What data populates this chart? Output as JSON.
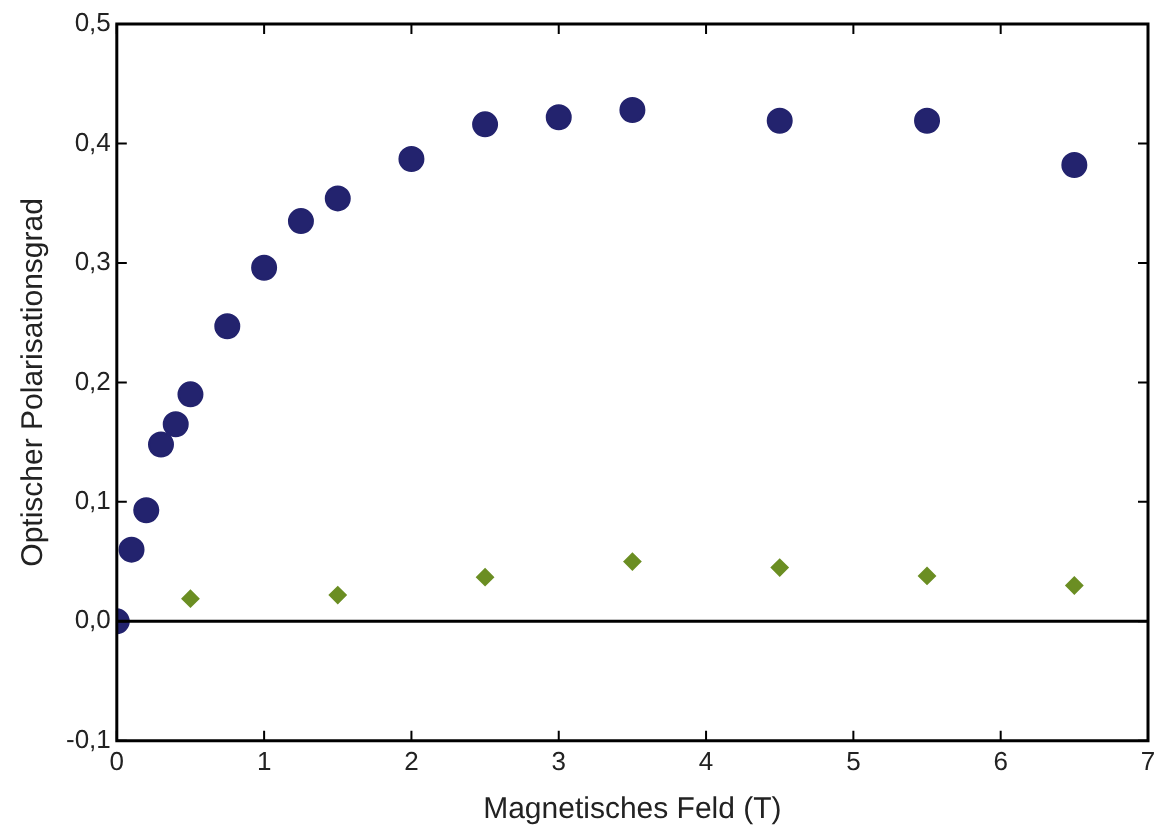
{
  "chart_data": {
    "type": "scatter",
    "xlabel": "Magnetisches Feld (T)",
    "ylabel": "Optischer Polarisationsgrad",
    "series": [
      {
        "color": "#23236e",
        "marker": "circle",
        "x": [
          0,
          0.1,
          0.2,
          0.3,
          0.4,
          0.5,
          0.75,
          1,
          1.25,
          1.5,
          2,
          2.5,
          3,
          3.5,
          4.5,
          5.5,
          6.5
        ],
        "values": [
          0,
          0.06,
          0.093,
          0.148,
          0.165,
          0.19,
          0.247,
          0.296,
          0.335,
          0.354,
          0.387,
          0.416,
          0.422,
          0.428,
          0.419,
          0.419,
          0.382
        ]
      },
      {
        "color": "#6b8e23",
        "marker": "diamond",
        "x": [
          0.5,
          1.5,
          2.5,
          3.5,
          4.5,
          5.5,
          6.5
        ],
        "values": [
          0.019,
          0.022,
          0.037,
          0.05,
          0.045,
          0.038,
          0.03
        ]
      }
    ],
    "xlim": [
      0,
      7
    ],
    "xticks": [
      0,
      1,
      2,
      3,
      4,
      5,
      6,
      7
    ],
    "ylim": [
      -0.1,
      0.5
    ],
    "yticks": [
      {
        "value": -0.1,
        "label": "-0,1"
      },
      {
        "value": 0,
        "label": "0,0"
      },
      {
        "value": 0.1,
        "label": "0,1"
      },
      {
        "value": 0.2,
        "label": "0,2"
      },
      {
        "value": 0.3,
        "label": "0,3"
      },
      {
        "value": 0.4,
        "label": "0,4"
      },
      {
        "value": 0.5,
        "label": "0,5"
      }
    ],
    "ref_lines": [
      {
        "axis": "y",
        "value": 0,
        "color": "#000000"
      }
    ],
    "grid": false,
    "legend": false
  }
}
